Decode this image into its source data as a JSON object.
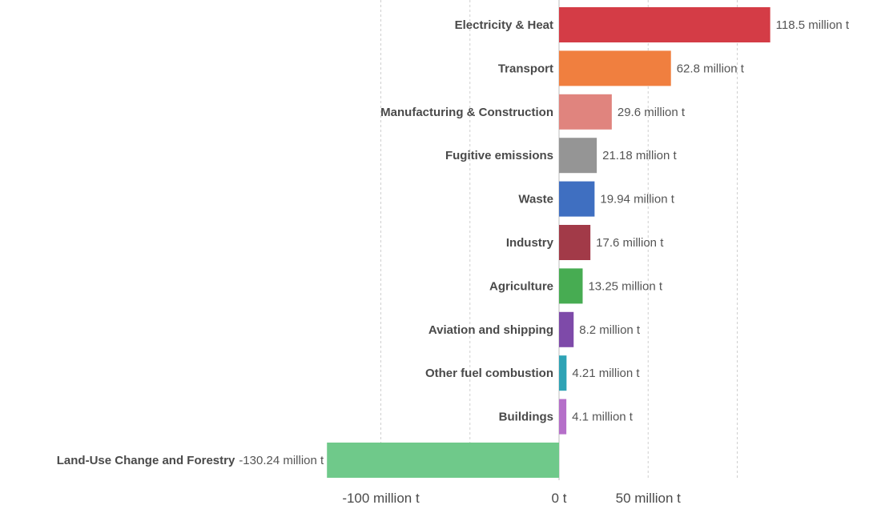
{
  "chart_data": {
    "type": "bar",
    "orientation": "horizontal",
    "title": "",
    "xlabel": "",
    "ylabel": "",
    "xlim": [
      -130.24,
      130
    ],
    "grid": true,
    "legend": "none",
    "bars": [
      {
        "category": "Electricity & Heat",
        "value": 118.5,
        "label": "118.5 million t",
        "color": "#d43c46"
      },
      {
        "category": "Transport",
        "value": 62.8,
        "label": "62.8 million t",
        "color": "#f07f3f"
      },
      {
        "category": "Manufacturing & Construction",
        "value": 29.6,
        "label": "29.6 million t",
        "color": "#e0847e"
      },
      {
        "category": "Fugitive emissions",
        "value": 21.18,
        "label": "21.18 million t",
        "color": "#959595"
      },
      {
        "category": "Waste",
        "value": 19.94,
        "label": "19.94 million t",
        "color": "#3f6fc1"
      },
      {
        "category": "Industry",
        "value": 17.6,
        "label": "17.6 million t",
        "color": "#a23a48"
      },
      {
        "category": "Agriculture",
        "value": 13.25,
        "label": "13.25 million t",
        "color": "#47ac52"
      },
      {
        "category": "Aviation and shipping",
        "value": 8.2,
        "label": "8.2 million t",
        "color": "#7e4aa9"
      },
      {
        "category": "Other fuel combustion",
        "value": 4.21,
        "label": "4.21 million t",
        "color": "#2ea3b5"
      },
      {
        "category": "Buildings",
        "value": 4.1,
        "label": "4.1 million t",
        "color": "#b56fc9"
      },
      {
        "category": "Land-Use Change and Forestry",
        "value": -130.24,
        "label": "-130.24 million t",
        "color": "#6fc98a"
      }
    ],
    "ticks": [
      {
        "value": -100,
        "label": "-100 million t"
      },
      {
        "value": 0,
        "label": "0 t"
      },
      {
        "value": 50,
        "label": "50 million t"
      }
    ],
    "gridlines": [
      -100,
      -50,
      0,
      50,
      100
    ]
  }
}
